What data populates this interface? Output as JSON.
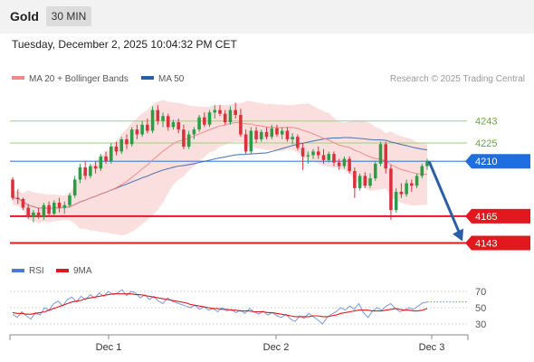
{
  "header": {
    "instrument": "Gold",
    "timeframe": "30 MIN",
    "timestamp": "Tuesday, December 2, 2025 10:04:32 PM CET",
    "credit": "Research © 2025 Trading Central"
  },
  "colors": {
    "bull": "#2c9c47",
    "bear": "#d9323a",
    "ma20": "#f08a8a",
    "band_fill": "#fbdcdc",
    "ma50": "#2b5ea7",
    "pivot": "#3f7fe0",
    "support": "#e3181f",
    "resistance": "#9fcf7a",
    "forecast_arrow": "#2b5ea7",
    "rsi": "#4a7bd6",
    "rsi_ma": "#e3181f"
  },
  "chart_data": [
    {
      "type": "candlestick",
      "legend": [
        "MA 20 + Bollinger Bands",
        "MA 50"
      ],
      "x_ticks": [
        "Dec 1",
        "Dec 2",
        "Dec 3"
      ],
      "ylim": [
        4133,
        4268
      ],
      "levels": [
        {
          "value": 4243,
          "label": "4243",
          "kind": "resistance"
        },
        {
          "value": 4225,
          "label": "4225",
          "kind": "resistance"
        },
        {
          "value": 4210,
          "label": "4210",
          "kind": "pivot"
        },
        {
          "value": 4165,
          "label": "4165",
          "kind": "support"
        },
        {
          "value": 4143,
          "label": "4143",
          "kind": "support"
        }
      ],
      "forecast": {
        "from": 4210,
        "to": 4143
      },
      "ohlc": [
        [
          4195,
          4197,
          4178,
          4180
        ],
        [
          4180,
          4187,
          4175,
          4179
        ],
        [
          4179,
          4180,
          4170,
          4172
        ],
        [
          4172,
          4175,
          4163,
          4165
        ],
        [
          4165,
          4170,
          4160,
          4168
        ],
        [
          4168,
          4172,
          4163,
          4165
        ],
        [
          4165,
          4176,
          4162,
          4174
        ],
        [
          4174,
          4177,
          4165,
          4167
        ],
        [
          4167,
          4178,
          4165,
          4176
        ],
        [
          4176,
          4180,
          4168,
          4172
        ],
        [
          4172,
          4177,
          4167,
          4174
        ],
        [
          4174,
          4184,
          4172,
          4182
        ],
        [
          4182,
          4198,
          4180,
          4195
        ],
        [
          4195,
          4208,
          4192,
          4205
        ],
        [
          4205,
          4210,
          4195,
          4198
        ],
        [
          4198,
          4208,
          4196,
          4206
        ],
        [
          4206,
          4210,
          4200,
          4204
        ],
        [
          4204,
          4216,
          4202,
          4214
        ],
        [
          4214,
          4218,
          4208,
          4210
        ],
        [
          4210,
          4225,
          4208,
          4222
        ],
        [
          4222,
          4226,
          4215,
          4218
        ],
        [
          4218,
          4230,
          4216,
          4228
        ],
        [
          4228,
          4232,
          4220,
          4224
        ],
        [
          4224,
          4238,
          4222,
          4236
        ],
        [
          4236,
          4240,
          4228,
          4232
        ],
        [
          4232,
          4243,
          4230,
          4240
        ],
        [
          4240,
          4245,
          4233,
          4235
        ],
        [
          4235,
          4255,
          4233,
          4252
        ],
        [
          4252,
          4256,
          4240,
          4243
        ],
        [
          4243,
          4250,
          4238,
          4247
        ],
        [
          4247,
          4249,
          4235,
          4238
        ],
        [
          4238,
          4244,
          4236,
          4242
        ],
        [
          4242,
          4245,
          4233,
          4236
        ],
        [
          4236,
          4240,
          4220,
          4222
        ],
        [
          4222,
          4235,
          4220,
          4232
        ],
        [
          4232,
          4238,
          4228,
          4236
        ],
        [
          4236,
          4248,
          4234,
          4246
        ],
        [
          4246,
          4250,
          4238,
          4240
        ],
        [
          4240,
          4252,
          4238,
          4250
        ],
        [
          4250,
          4256,
          4245,
          4252
        ],
        [
          4252,
          4256,
          4247,
          4249
        ],
        [
          4249,
          4252,
          4240,
          4242
        ],
        [
          4242,
          4255,
          4240,
          4252
        ],
        [
          4252,
          4258,
          4245,
          4248
        ],
        [
          4248,
          4253,
          4230,
          4232
        ],
        [
          4232,
          4236,
          4216,
          4218
        ],
        [
          4218,
          4238,
          4216,
          4235
        ],
        [
          4235,
          4238,
          4225,
          4228
        ],
        [
          4228,
          4236,
          4226,
          4234
        ],
        [
          4234,
          4238,
          4228,
          4230
        ],
        [
          4230,
          4240,
          4228,
          4237
        ],
        [
          4237,
          4240,
          4230,
          4232
        ],
        [
          4232,
          4238,
          4228,
          4235
        ],
        [
          4235,
          4238,
          4226,
          4228
        ],
        [
          4228,
          4233,
          4224,
          4230
        ],
        [
          4230,
          4232,
          4219,
          4221
        ],
        [
          4221,
          4225,
          4203,
          4214
        ],
        [
          4214,
          4218,
          4208,
          4215
        ],
        [
          4215,
          4220,
          4212,
          4218
        ],
        [
          4218,
          4222,
          4212,
          4215
        ],
        [
          4215,
          4220,
          4208,
          4211
        ],
        [
          4211,
          4218,
          4209,
          4216
        ],
        [
          4216,
          4218,
          4206,
          4209
        ],
        [
          4209,
          4212,
          4203,
          4206
        ],
        [
          4206,
          4214,
          4204,
          4212
        ],
        [
          4212,
          4214,
          4200,
          4202
        ],
        [
          4202,
          4205,
          4180,
          4188
        ],
        [
          4188,
          4200,
          4186,
          4198
        ],
        [
          4198,
          4201,
          4188,
          4190
        ],
        [
          4190,
          4200,
          4188,
          4196
        ],
        [
          4196,
          4210,
          4194,
          4208
        ],
        [
          4208,
          4226,
          4206,
          4224
        ],
        [
          4224,
          4226,
          4200,
          4204
        ],
        [
          4204,
          4207,
          4162,
          4170
        ],
        [
          4170,
          4188,
          4168,
          4185
        ],
        [
          4185,
          4192,
          4180,
          4183
        ],
        [
          4183,
          4195,
          4181,
          4192
        ],
        [
          4192,
          4195,
          4185,
          4190
        ],
        [
          4190,
          4200,
          4188,
          4198
        ],
        [
          4198,
          4208,
          4196,
          4206
        ],
        [
          4206,
          4212,
          4203,
          4210
        ]
      ]
    },
    {
      "type": "line",
      "legend": [
        "RSI",
        "9MA"
      ],
      "yticks": [
        70,
        50,
        30
      ],
      "ylim": [
        20,
        80
      ],
      "rsi": [
        42,
        38,
        45,
        40,
        36,
        44,
        41,
        50,
        47,
        55,
        58,
        52,
        60,
        63,
        57,
        64,
        60,
        66,
        62,
        68,
        64,
        70,
        66,
        68,
        72,
        65,
        70,
        68,
        62,
        66,
        60,
        64,
        58,
        55,
        62,
        58,
        56,
        54,
        52,
        50,
        53,
        48,
        51,
        47,
        49,
        45,
        50,
        46,
        48,
        44,
        47,
        43,
        49,
        45,
        42,
        46,
        41,
        44,
        40,
        38,
        42,
        36,
        33,
        40,
        37,
        43,
        39,
        35,
        30,
        38,
        42,
        45,
        50,
        47,
        52,
        48,
        55,
        44,
        38,
        46,
        50,
        47,
        52,
        55,
        49,
        45,
        47,
        50,
        48,
        52,
        56,
        57
      ],
      "rsi_ma": [
        44,
        43,
        43,
        42,
        42,
        43,
        44,
        45,
        47,
        49,
        51,
        53,
        55,
        57,
        58,
        59,
        61,
        62,
        63,
        64,
        65,
        66,
        67,
        67,
        67,
        67,
        67,
        66,
        66,
        65,
        64,
        63,
        62,
        61,
        60,
        59,
        58,
        57,
        56,
        54,
        53,
        52,
        51,
        50,
        49,
        49,
        48,
        48,
        47,
        47,
        46,
        46,
        46,
        45,
        45,
        45,
        44,
        44,
        43,
        42,
        41,
        40,
        39,
        39,
        39,
        39,
        40,
        40,
        39,
        39,
        40,
        41,
        43,
        44,
        45,
        46,
        47,
        47,
        47,
        46,
        46,
        46,
        47,
        48,
        49,
        48,
        47,
        47,
        46,
        46,
        47,
        49
      ]
    }
  ]
}
